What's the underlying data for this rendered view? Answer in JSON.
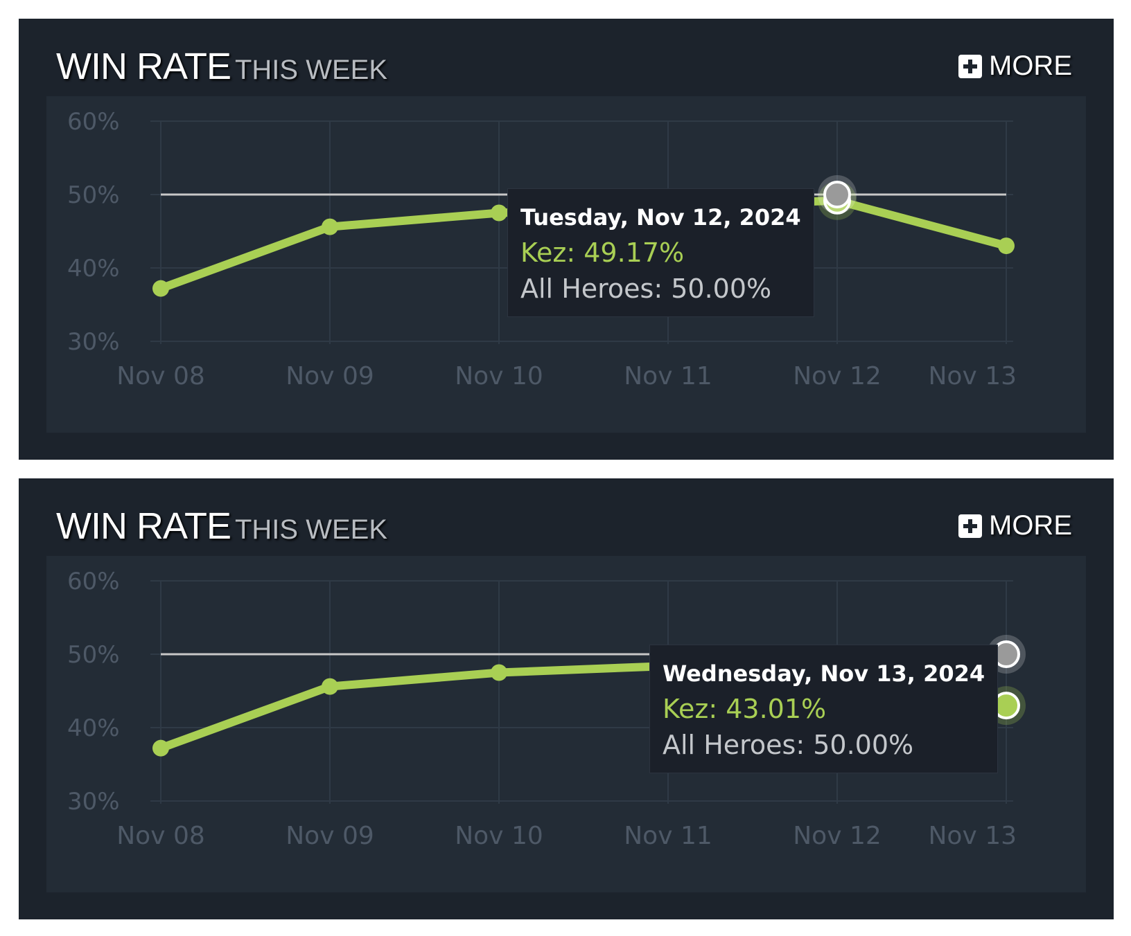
{
  "panels": [
    {
      "title": "WIN RATE",
      "subtitle": "THIS WEEK",
      "more_label": "MORE",
      "tooltip": {
        "date": "Tuesday, Nov 12, 2024",
        "hero_line": "Kez: 49.17%",
        "all_line": "All Heroes: 50.00%"
      }
    },
    {
      "title": "WIN RATE",
      "subtitle": "THIS WEEK",
      "more_label": "MORE",
      "tooltip": {
        "date": "Wednesday, Nov 13, 2024",
        "hero_line": "Kez: 43.01%",
        "all_line": "All Heroes: 50.00%"
      }
    }
  ],
  "colors": {
    "hero": "#a9cf54",
    "all": "#c8c8c8",
    "grid": "#2f3a46",
    "tick": "#4e5967"
  },
  "chart_data": [
    {
      "type": "line",
      "categories": [
        "Nov 08",
        "Nov 09",
        "Nov 10",
        "Nov 11",
        "Nov 12",
        "Nov 13"
      ],
      "yticks": [
        "60%",
        "50%",
        "40%",
        "30%"
      ],
      "ylim": [
        30,
        60
      ],
      "grid": true,
      "series": [
        {
          "name": "Kez",
          "values": [
            37.2,
            45.6,
            47.5,
            48.4,
            49.17,
            43.01
          ]
        },
        {
          "name": "All Heroes",
          "values": [
            50,
            50,
            50,
            50,
            50,
            50
          ]
        }
      ],
      "highlight_index": 4
    },
    {
      "type": "line",
      "categories": [
        "Nov 08",
        "Nov 09",
        "Nov 10",
        "Nov 11",
        "Nov 12",
        "Nov 13"
      ],
      "yticks": [
        "60%",
        "50%",
        "40%",
        "30%"
      ],
      "ylim": [
        30,
        60
      ],
      "grid": true,
      "series": [
        {
          "name": "Kez",
          "values": [
            37.2,
            45.6,
            47.5,
            48.4,
            49.17,
            43.01
          ]
        },
        {
          "name": "All Heroes",
          "values": [
            50,
            50,
            50,
            50,
            50,
            50
          ]
        }
      ],
      "highlight_index": 5
    }
  ]
}
